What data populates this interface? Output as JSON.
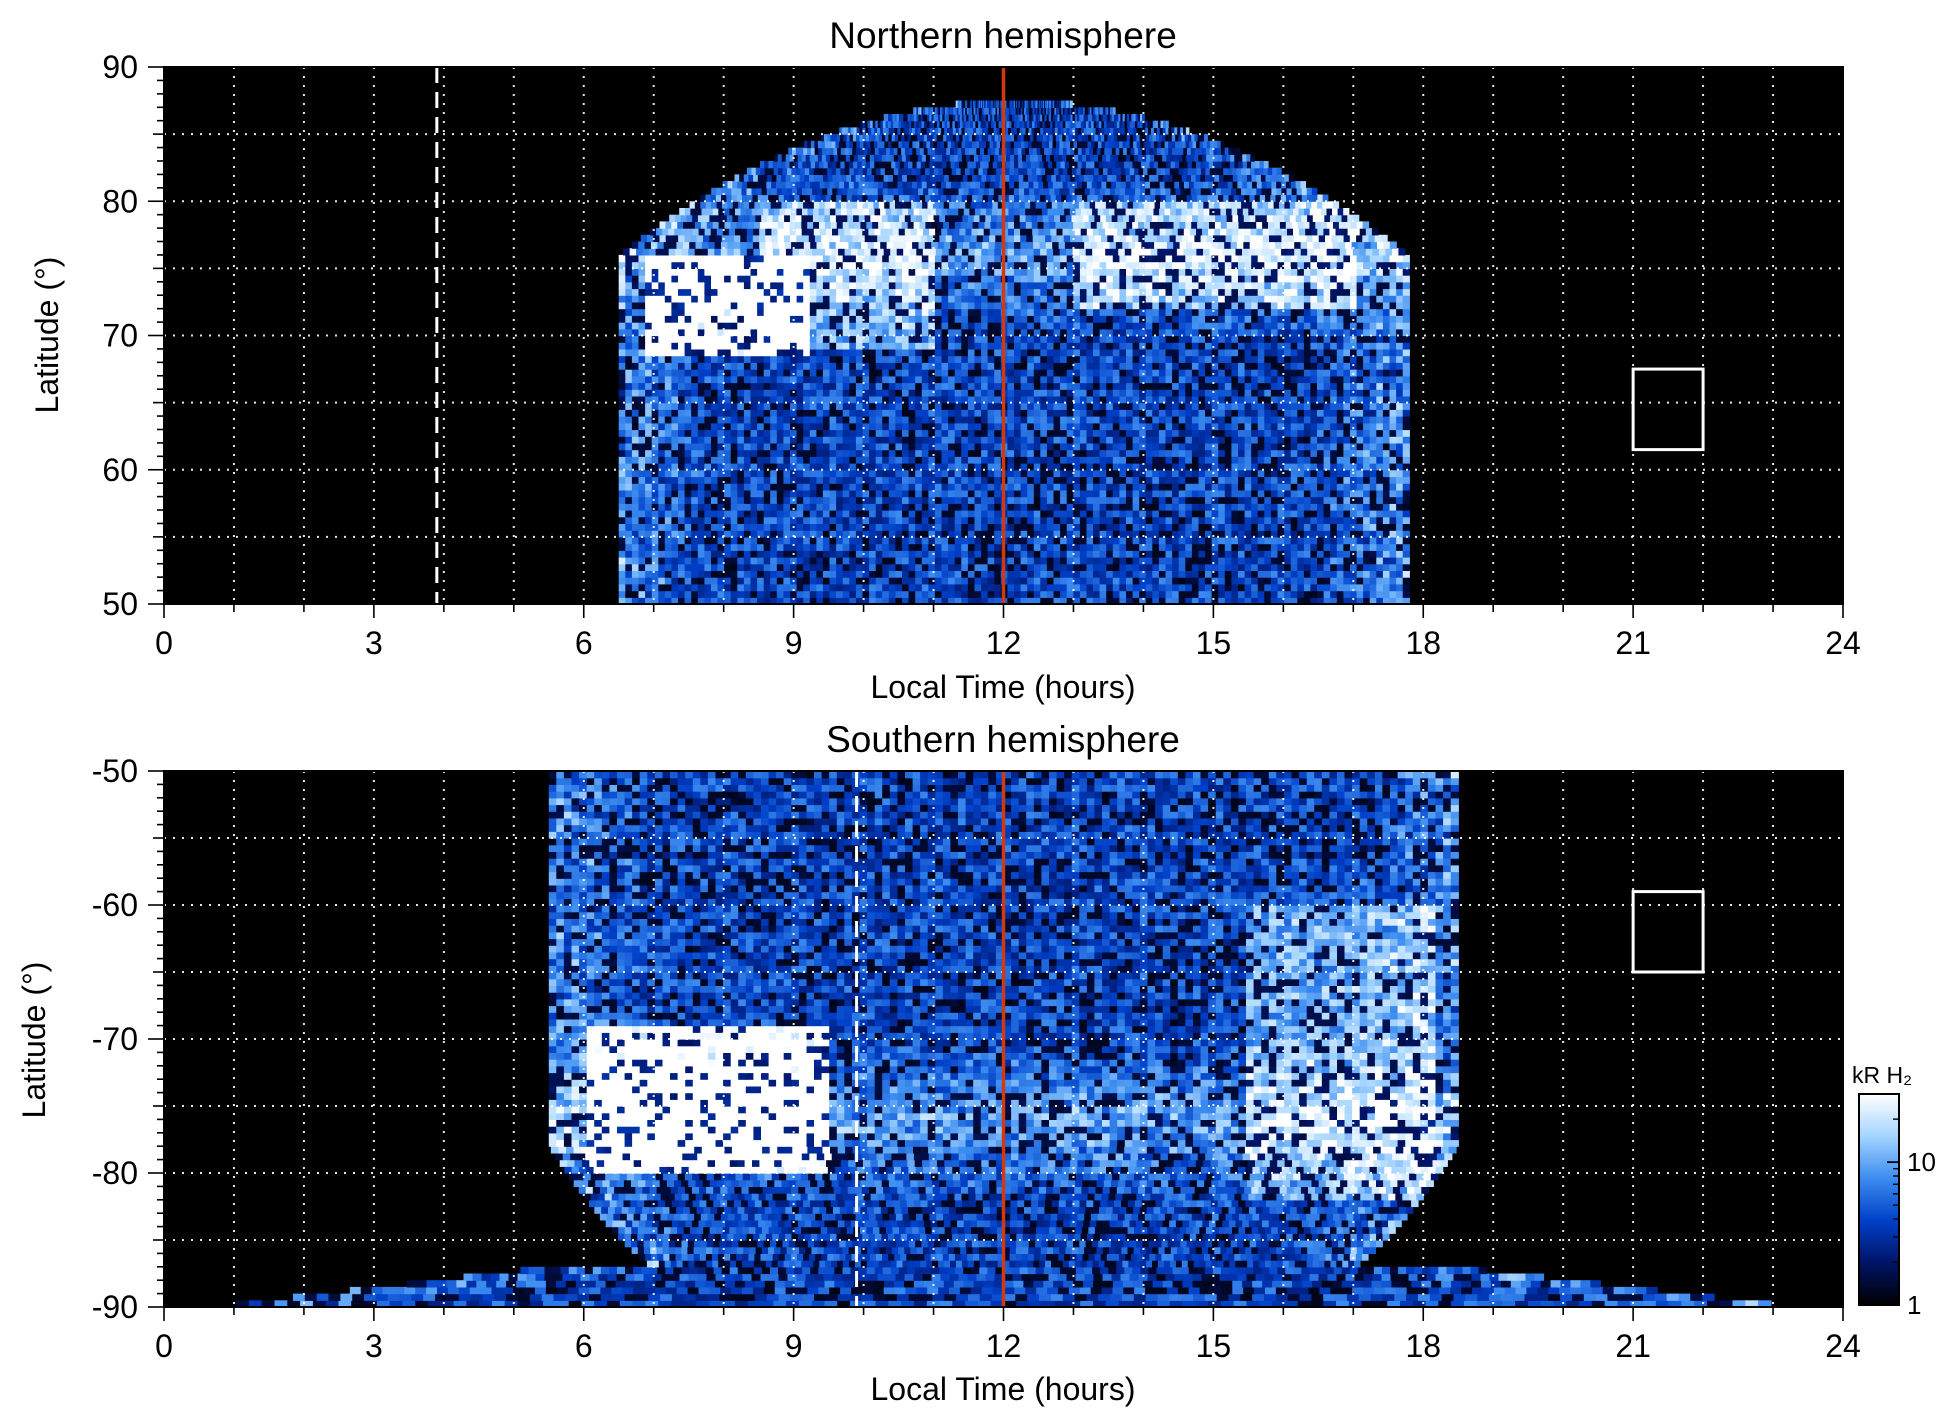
{
  "chart_data": [
    {
      "type": "heatmap",
      "title": "Northern hemisphere",
      "xlabel": "Local Time (hours)",
      "ylabel": "Latitude (°)",
      "xlim": [
        0,
        24
      ],
      "ylim": [
        50,
        90
      ],
      "xticks": [
        0,
        3,
        6,
        9,
        12,
        15,
        18,
        21,
        24
      ],
      "yticks": [
        50,
        60,
        70,
        80,
        90
      ],
      "grid": true,
      "coverage": {
        "lt_start": 6.5,
        "lt_end": 17.8,
        "lat_min": 50,
        "lat_max": 87.5
      },
      "bright_regions": [
        {
          "lt": [
            6.9,
            9.2
          ],
          "lat": [
            68.5,
            76
          ],
          "level": "saturated"
        },
        {
          "lt": [
            8.5,
            11
          ],
          "lat": [
            69,
            80
          ],
          "level": "high"
        },
        {
          "lt": [
            13,
            17
          ],
          "lat": [
            72,
            80
          ],
          "level": "high"
        }
      ],
      "noon_line_lt": 12,
      "dashed_line_lt": 3.9,
      "box": {
        "lt": [
          21,
          22
        ],
        "lat": [
          61.5,
          67.5
        ]
      }
    },
    {
      "type": "heatmap",
      "title": "Southern hemisphere",
      "xlabel": "Local Time (hours)",
      "ylabel": "Latitude (°)",
      "xlim": [
        0,
        24
      ],
      "ylim": [
        -90,
        -50
      ],
      "xticks": [
        0,
        3,
        6,
        9,
        12,
        15,
        18,
        21,
        24
      ],
      "yticks": [
        -50,
        -60,
        -70,
        -80,
        -90
      ],
      "grid": true,
      "coverage": {
        "lt_start": 5.5,
        "lt_end": 18.5,
        "lat_min": -90,
        "lat_max": -50
      },
      "bright_regions": [
        {
          "lt": [
            6.0,
            9.5
          ],
          "lat": [
            -80,
            -69
          ],
          "level": "saturated"
        },
        {
          "lt": [
            15.5,
            18.2
          ],
          "lat": [
            -82,
            -60
          ],
          "level": "high"
        }
      ],
      "noon_line_lt": 12,
      "dashed_line_lt": 9.9,
      "box": {
        "lt": [
          21,
          22
        ],
        "lat": [
          -65,
          -59
        ]
      }
    }
  ],
  "colorbar": {
    "label": "kR H₂",
    "scale": "log",
    "range": [
      1,
      30
    ],
    "ticks": [
      1,
      10
    ],
    "colors": [
      "#000000",
      "#001466",
      "#0040c8",
      "#3c8cf0",
      "#a4d4ff",
      "#ffffff"
    ]
  },
  "colors": {
    "background": "#000000",
    "noon_line": "#d13a10",
    "grid": "#ffffff",
    "box": "#ffffff"
  }
}
